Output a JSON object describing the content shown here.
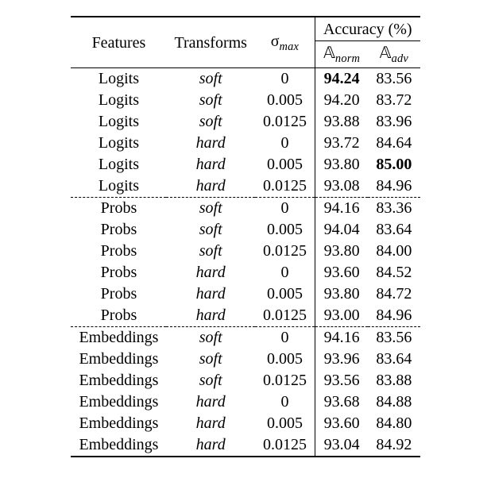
{
  "header": {
    "features": "Features",
    "transforms": "Transforms",
    "sigma": "σ",
    "sigma_sub": "max",
    "accuracy": "Accuracy (%)",
    "Anorm_sym": "𝔸",
    "Anorm_sub": "norm",
    "Aadv_sym": "𝔸",
    "Aadv_sub": "adv"
  },
  "groups": [
    {
      "rows": [
        {
          "f": "Logits",
          "t": "soft",
          "s": "0",
          "n": "94.24",
          "n_bold": true,
          "a": "83.56",
          "a_bold": false
        },
        {
          "f": "Logits",
          "t": "soft",
          "s": "0.005",
          "n": "94.20",
          "n_bold": false,
          "a": "83.72",
          "a_bold": false
        },
        {
          "f": "Logits",
          "t": "soft",
          "s": "0.0125",
          "n": "93.88",
          "n_bold": false,
          "a": "83.96",
          "a_bold": false
        },
        {
          "f": "Logits",
          "t": "hard",
          "s": "0",
          "n": "93.72",
          "n_bold": false,
          "a": "84.64",
          "a_bold": false
        },
        {
          "f": "Logits",
          "t": "hard",
          "s": "0.005",
          "n": "93.80",
          "n_bold": false,
          "a": "85.00",
          "a_bold": true
        },
        {
          "f": "Logits",
          "t": "hard",
          "s": "0.0125",
          "n": "93.08",
          "n_bold": false,
          "a": "84.96",
          "a_bold": false
        }
      ]
    },
    {
      "rows": [
        {
          "f": "Probs",
          "t": "soft",
          "s": "0",
          "n": "94.16",
          "n_bold": false,
          "a": "83.36",
          "a_bold": false
        },
        {
          "f": "Probs",
          "t": "soft",
          "s": "0.005",
          "n": "94.04",
          "n_bold": false,
          "a": "83.64",
          "a_bold": false
        },
        {
          "f": "Probs",
          "t": "soft",
          "s": "0.0125",
          "n": "93.80",
          "n_bold": false,
          "a": "84.00",
          "a_bold": false
        },
        {
          "f": "Probs",
          "t": "hard",
          "s": "0",
          "n": "93.60",
          "n_bold": false,
          "a": "84.52",
          "a_bold": false
        },
        {
          "f": "Probs",
          "t": "hard",
          "s": "0.005",
          "n": "93.80",
          "n_bold": false,
          "a": "84.72",
          "a_bold": false
        },
        {
          "f": "Probs",
          "t": "hard",
          "s": "0.0125",
          "n": "93.00",
          "n_bold": false,
          "a": "84.96",
          "a_bold": false
        }
      ]
    },
    {
      "rows": [
        {
          "f": "Embeddings",
          "t": "soft",
          "s": "0",
          "n": "94.16",
          "n_bold": false,
          "a": "83.56",
          "a_bold": false
        },
        {
          "f": "Embeddings",
          "t": "soft",
          "s": "0.005",
          "n": "93.96",
          "n_bold": false,
          "a": "83.64",
          "a_bold": false
        },
        {
          "f": "Embeddings",
          "t": "soft",
          "s": "0.0125",
          "n": "93.56",
          "n_bold": false,
          "a": "83.88",
          "a_bold": false
        },
        {
          "f": "Embeddings",
          "t": "hard",
          "s": "0",
          "n": "93.68",
          "n_bold": false,
          "a": "84.88",
          "a_bold": false
        },
        {
          "f": "Embeddings",
          "t": "hard",
          "s": "0.005",
          "n": "93.60",
          "n_bold": false,
          "a": "84.80",
          "a_bold": false
        },
        {
          "f": "Embeddings",
          "t": "hard",
          "s": "0.0125",
          "n": "93.04",
          "n_bold": false,
          "a": "84.92",
          "a_bold": false
        }
      ]
    }
  ],
  "style": {
    "font_family": "Times New Roman",
    "font_size_pt": 20,
    "background": "#ffffff",
    "text_color": "#000000",
    "rule_color": "#000000",
    "dash_color": "#000000"
  }
}
